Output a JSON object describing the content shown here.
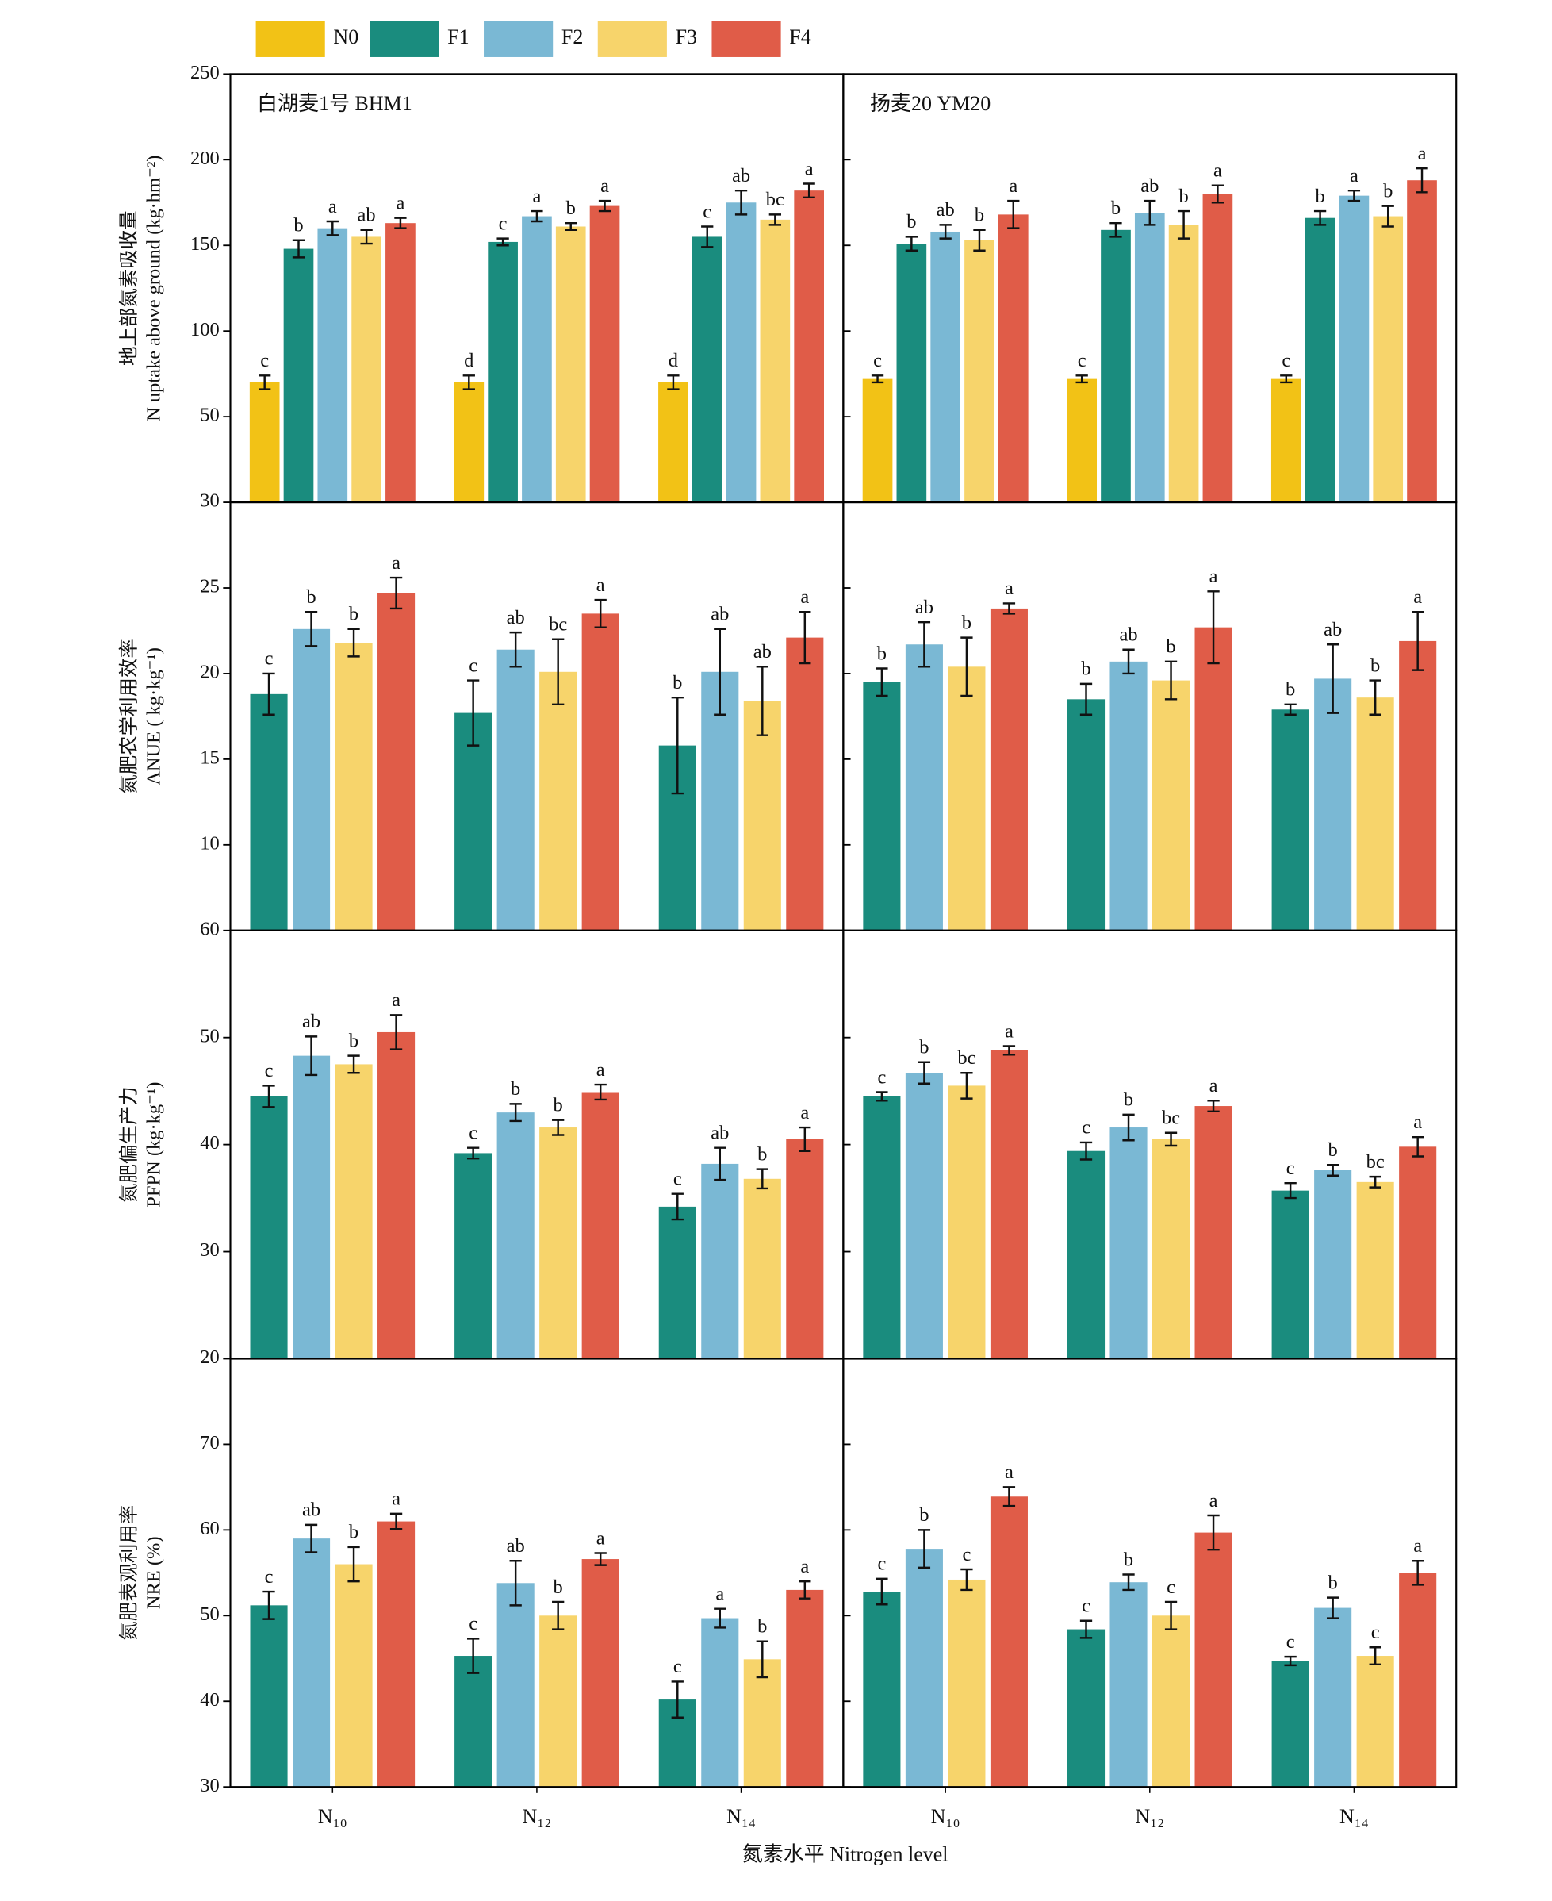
{
  "xlabel": "氮素水平 Nitrogen level",
  "chart_data": [
    {
      "type": "bar",
      "title": "白湖麦1号 BHM1",
      "ylabel": [
        "地上部氮素吸收量",
        "N uptake above ground (kg·hm⁻²)"
      ],
      "ylim": [
        0,
        250
      ],
      "yticks": [
        50,
        100,
        150,
        200,
        250
      ],
      "series": [
        {
          "name": "N0",
          "color": "#f2c216",
          "values": [
            70,
            70,
            70
          ],
          "errors": [
            4,
            4,
            4
          ],
          "letters": [
            "c",
            "d",
            "d"
          ]
        },
        {
          "name": "F1",
          "color": "#1a8c7e",
          "values": [
            148,
            152,
            155
          ],
          "errors": [
            5,
            2,
            6
          ],
          "letters": [
            "b",
            "c",
            "c"
          ]
        },
        {
          "name": "F2",
          "color": "#7ab8d4",
          "values": [
            160,
            167,
            175
          ],
          "errors": [
            4,
            3,
            7
          ],
          "letters": [
            "a",
            "a",
            "ab"
          ]
        },
        {
          "name": "F3",
          "color": "#f7d46b",
          "values": [
            155,
            161,
            165
          ],
          "errors": [
            4,
            2,
            3
          ],
          "letters": [
            "ab",
            "b",
            "bc"
          ]
        },
        {
          "name": "F4",
          "color": "#e05c48",
          "values": [
            163,
            173,
            182
          ],
          "errors": [
            3,
            3,
            4
          ],
          "letters": [
            "a",
            "a",
            "a"
          ]
        }
      ]
    },
    {
      "type": "bar",
      "title": "扬麦20 YM20",
      "ylim": [
        0,
        250
      ],
      "yticks": [
        50,
        100,
        150,
        200,
        250
      ],
      "series": [
        {
          "color": "#f2c216",
          "values": [
            72,
            72,
            72
          ],
          "errors": [
            2,
            2,
            2
          ],
          "letters": [
            "c",
            "c",
            "c"
          ]
        },
        {
          "color": "#1a8c7e",
          "values": [
            151,
            159,
            166
          ],
          "errors": [
            4,
            4,
            4
          ],
          "letters": [
            "b",
            "b",
            "b"
          ]
        },
        {
          "color": "#7ab8d4",
          "values": [
            158,
            169,
            179
          ],
          "errors": [
            4,
            7,
            3
          ],
          "letters": [
            "ab",
            "ab",
            "a"
          ]
        },
        {
          "color": "#f7d46b",
          "values": [
            153,
            162,
            167
          ],
          "errors": [
            6,
            8,
            6
          ],
          "letters": [
            "b",
            "b",
            "b"
          ]
        },
        {
          "color": "#e05c48",
          "values": [
            168,
            180,
            188
          ],
          "errors": [
            8,
            5,
            7
          ],
          "letters": [
            "a",
            "a",
            "a"
          ]
        }
      ]
    },
    {
      "type": "bar",
      "ylabel": [
        "氮肥农学利用效率",
        "ANUE ( kg·kg⁻¹)"
      ],
      "ylim": [
        5,
        30
      ],
      "yticks": [
        10,
        15,
        20,
        25,
        30
      ],
      "series": [
        {
          "color": "#1a8c7e",
          "values": [
            18.8,
            17.7,
            15.8
          ],
          "errors": [
            1.2,
            1.9,
            2.8
          ],
          "letters": [
            "c",
            "c",
            "b"
          ]
        },
        {
          "color": "#7ab8d4",
          "values": [
            22.6,
            21.4,
            20.1
          ],
          "errors": [
            1.0,
            1.0,
            2.5
          ],
          "letters": [
            "b",
            "ab",
            "ab"
          ]
        },
        {
          "color": "#f7d46b",
          "values": [
            21.8,
            20.1,
            18.4
          ],
          "errors": [
            0.8,
            1.9,
            2.0
          ],
          "letters": [
            "b",
            "bc",
            "ab"
          ]
        },
        {
          "color": "#e05c48",
          "values": [
            24.7,
            23.5,
            22.1
          ],
          "errors": [
            0.9,
            0.8,
            1.5
          ],
          "letters": [
            "a",
            "a",
            "a"
          ]
        }
      ]
    },
    {
      "type": "bar",
      "ylim": [
        5,
        30
      ],
      "yticks": [
        10,
        15,
        20,
        25,
        30
      ],
      "series": [
        {
          "color": "#1a8c7e",
          "values": [
            19.5,
            18.5,
            17.9
          ],
          "errors": [
            0.8,
            0.9,
            0.3
          ],
          "letters": [
            "b",
            "b",
            "b"
          ]
        },
        {
          "color": "#7ab8d4",
          "values": [
            21.7,
            20.7,
            19.7
          ],
          "errors": [
            1.3,
            0.7,
            2.0
          ],
          "letters": [
            "ab",
            "ab",
            "ab"
          ]
        },
        {
          "color": "#f7d46b",
          "values": [
            20.4,
            19.6,
            18.6
          ],
          "errors": [
            1.7,
            1.1,
            1.0
          ],
          "letters": [
            "b",
            "b",
            "b"
          ]
        },
        {
          "color": "#e05c48",
          "values": [
            23.8,
            22.7,
            21.9
          ],
          "errors": [
            0.3,
            2.1,
            1.7
          ],
          "letters": [
            "a",
            "a",
            "a"
          ]
        }
      ]
    },
    {
      "type": "bar",
      "ylabel": [
        "氮肥偏生产力",
        "PFPN (kg·kg⁻¹)"
      ],
      "ylim": [
        20,
        60
      ],
      "yticks": [
        20,
        30,
        40,
        50,
        60
      ],
      "series": [
        {
          "color": "#1a8c7e",
          "values": [
            44.5,
            39.2,
            34.2
          ],
          "errors": [
            1.0,
            0.5,
            1.2
          ],
          "letters": [
            "c",
            "c",
            "c"
          ]
        },
        {
          "color": "#7ab8d4",
          "values": [
            48.3,
            43.0,
            38.2
          ],
          "errors": [
            1.8,
            0.8,
            1.5
          ],
          "letters": [
            "ab",
            "b",
            "ab"
          ]
        },
        {
          "color": "#f7d46b",
          "values": [
            47.5,
            41.6,
            36.8
          ],
          "errors": [
            0.8,
            0.7,
            0.9
          ],
          "letters": [
            "b",
            "b",
            "b"
          ]
        },
        {
          "color": "#e05c48",
          "values": [
            50.5,
            44.9,
            40.5
          ],
          "errors": [
            1.6,
            0.7,
            1.1
          ],
          "letters": [
            "a",
            "a",
            "a"
          ]
        }
      ]
    },
    {
      "type": "bar",
      "ylim": [
        20,
        60
      ],
      "yticks": [
        20,
        30,
        40,
        50,
        60
      ],
      "series": [
        {
          "color": "#1a8c7e",
          "values": [
            44.5,
            39.4,
            35.7
          ],
          "errors": [
            0.4,
            0.8,
            0.7
          ],
          "letters": [
            "c",
            "c",
            "c"
          ]
        },
        {
          "color": "#7ab8d4",
          "values": [
            46.7,
            41.6,
            37.6
          ],
          "errors": [
            1.0,
            1.2,
            0.5
          ],
          "letters": [
            "b",
            "b",
            "b"
          ]
        },
        {
          "color": "#f7d46b",
          "values": [
            45.5,
            40.5,
            36.5
          ],
          "errors": [
            1.2,
            0.6,
            0.5
          ],
          "letters": [
            "bc",
            "bc",
            "bc"
          ]
        },
        {
          "color": "#e05c48",
          "values": [
            48.8,
            43.6,
            39.8
          ],
          "errors": [
            0.4,
            0.5,
            0.9
          ],
          "letters": [
            "a",
            "a",
            "a"
          ]
        }
      ]
    },
    {
      "type": "bar",
      "ylabel": [
        "氮肥表观利用率",
        "NRE (%)"
      ],
      "ylim": [
        30,
        80
      ],
      "yticks": [
        30,
        40,
        50,
        60,
        70
      ],
      "categories": [
        "N₁₀",
        "N₁₂",
        "N₁₄"
      ],
      "series": [
        {
          "color": "#1a8c7e",
          "values": [
            51.2,
            45.3,
            40.2
          ],
          "errors": [
            1.6,
            2.0,
            2.1
          ],
          "letters": [
            "c",
            "c",
            "c"
          ]
        },
        {
          "color": "#7ab8d4",
          "values": [
            59.0,
            53.8,
            49.7
          ],
          "errors": [
            1.6,
            2.6,
            1.1
          ],
          "letters": [
            "ab",
            "ab",
            "a"
          ]
        },
        {
          "color": "#f7d46b",
          "values": [
            56.0,
            50.0,
            44.9
          ],
          "errors": [
            2.0,
            1.6,
            2.1
          ],
          "letters": [
            "b",
            "b",
            "b"
          ]
        },
        {
          "color": "#e05c48",
          "values": [
            61.0,
            56.6,
            53.0
          ],
          "errors": [
            0.9,
            0.7,
            1.0
          ],
          "letters": [
            "a",
            "a",
            "a"
          ]
        }
      ]
    },
    {
      "type": "bar",
      "ylim": [
        30,
        80
      ],
      "yticks": [
        30,
        40,
        50,
        60,
        70
      ],
      "categories": [
        "N₁₀",
        "N₁₂",
        "N₁₄"
      ],
      "series": [
        {
          "color": "#1a8c7e",
          "values": [
            52.8,
            48.4,
            44.7
          ],
          "errors": [
            1.5,
            1.0,
            0.5
          ],
          "letters": [
            "c",
            "c",
            "c"
          ]
        },
        {
          "color": "#7ab8d4",
          "values": [
            57.8,
            53.9,
            50.9
          ],
          "errors": [
            2.2,
            0.9,
            1.2
          ],
          "letters": [
            "b",
            "b",
            "b"
          ]
        },
        {
          "color": "#f7d46b",
          "values": [
            54.2,
            50.0,
            45.3
          ],
          "errors": [
            1.2,
            1.6,
            1.0
          ],
          "letters": [
            "c",
            "c",
            "c"
          ]
        },
        {
          "color": "#e05c48",
          "values": [
            63.9,
            59.7,
            55.0
          ],
          "errors": [
            1.1,
            2.0,
            1.4
          ],
          "letters": [
            "a",
            "a",
            "a"
          ]
        }
      ]
    }
  ]
}
